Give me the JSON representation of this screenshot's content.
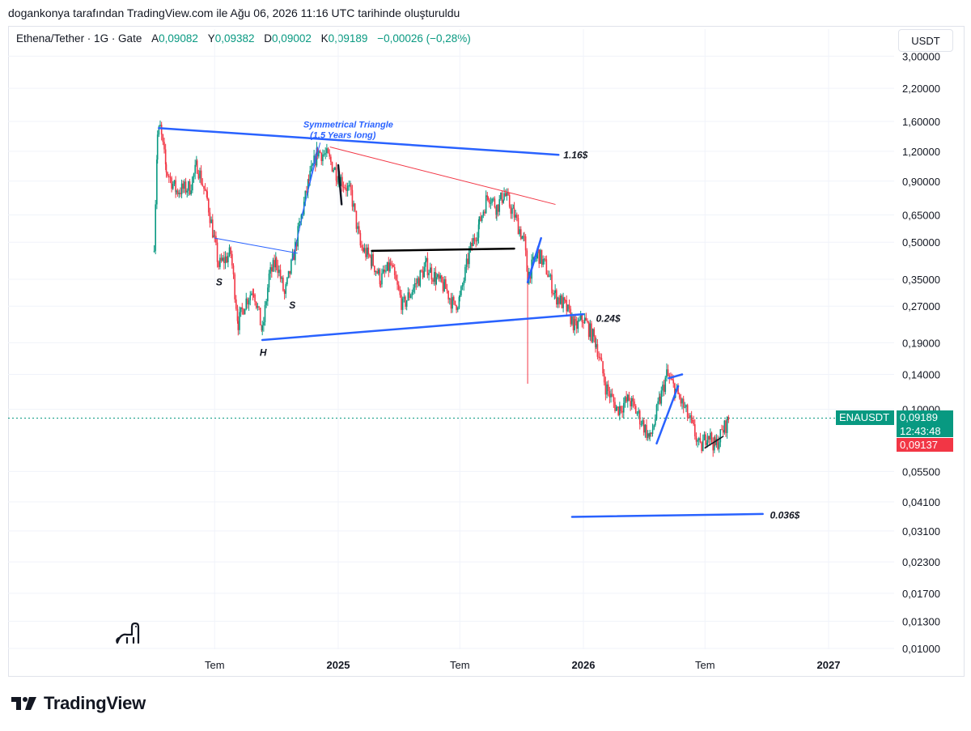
{
  "header": {
    "attribution": "dogankonya tarafından TradingView.com ile Ağu 06, 2026 11:16 UTC tarihinde oluşturuldu"
  },
  "legend": {
    "symbol": "Ethena/Tether · 1G · Gate",
    "open_label": "A",
    "open": "0,09082",
    "high_label": "Y",
    "high": "0,09382",
    "low_label": "D",
    "low": "0,09002",
    "close_label": "K",
    "close": "0,09189",
    "change": "−0,00026 (−0,28%)"
  },
  "currency_button": "USDT",
  "price_tags": {
    "symbol": "ENAUSDT",
    "last": "0,09189",
    "countdown": "12:43:48",
    "bid": "0,09137"
  },
  "annotations": {
    "triangle_title": "Symmetrical Triangle",
    "triangle_sub": "(1.5 Years long)",
    "target_upper": "1.16$",
    "target_mid": "0.24$",
    "target_low": "0.036$",
    "s1": "S",
    "head": "H",
    "s2": "S"
  },
  "brand": "TradingView",
  "colors": {
    "up": "#089981",
    "down": "#f23645",
    "trend": "#2962ff",
    "accent_line": "#f23645"
  },
  "chart_data": {
    "type": "candlestick",
    "title": "Ethena/Tether · 1G · Gate",
    "y_scale": "log",
    "y_ticks": [
      "3,00000",
      "2,20000",
      "1,60000",
      "1,20000",
      "0,90000",
      "0,65000",
      "0,50000",
      "0,35000",
      "0,27000",
      "0,19000",
      "0,14000",
      "0,10000",
      "0,05500",
      "0,04100",
      "0,03100",
      "0,02300",
      "0,01700",
      "0,01300",
      "0,01000"
    ],
    "y_tick_values": [
      3.0,
      2.2,
      1.6,
      1.2,
      0.9,
      0.65,
      0.5,
      0.35,
      0.27,
      0.19,
      0.14,
      0.1,
      0.055,
      0.041,
      0.031,
      0.023,
      0.017,
      0.013,
      0.01
    ],
    "x_ticks": [
      "Tem",
      "2025",
      "Tem",
      "2026",
      "Tem",
      "2027"
    ],
    "x_tick_dates": [
      "2024-07-01",
      "2025-01-01",
      "2025-07-01",
      "2026-01-01",
      "2026-07-01",
      "2027-01-01"
    ],
    "x_range": [
      "2024-01-01",
      "2027-05-01"
    ],
    "price_path": [
      [
        "2024-04-02",
        0.5
      ],
      [
        "2024-04-07",
        1.4
      ],
      [
        "2024-04-11",
        1.5
      ],
      [
        "2024-04-20",
        1.0
      ],
      [
        "2024-05-05",
        0.82
      ],
      [
        "2024-05-25",
        0.85
      ],
      [
        "2024-06-05",
        1.05
      ],
      [
        "2024-06-20",
        0.75
      ],
      [
        "2024-07-01",
        0.5
      ],
      [
        "2024-07-07",
        0.4
      ],
      [
        "2024-07-25",
        0.45
      ],
      [
        "2024-08-05",
        0.23
      ],
      [
        "2024-08-15",
        0.28
      ],
      [
        "2024-08-28",
        0.32
      ],
      [
        "2024-09-10",
        0.21
      ],
      [
        "2024-09-20",
        0.36
      ],
      [
        "2024-10-01",
        0.42
      ],
      [
        "2024-10-13",
        0.3
      ],
      [
        "2024-10-25",
        0.42
      ],
      [
        "2024-11-05",
        0.6
      ],
      [
        "2024-11-18",
        0.9
      ],
      [
        "2024-12-01",
        1.2
      ],
      [
        "2024-12-15",
        1.15
      ],
      [
        "2025-01-01",
        0.95
      ],
      [
        "2025-01-20",
        0.8
      ],
      [
        "2025-02-03",
        0.48
      ],
      [
        "2025-02-20",
        0.42
      ],
      [
        "2025-03-05",
        0.35
      ],
      [
        "2025-03-20",
        0.4
      ],
      [
        "2025-04-07",
        0.27
      ],
      [
        "2025-04-25",
        0.33
      ],
      [
        "2025-05-12",
        0.4
      ],
      [
        "2025-05-27",
        0.35
      ],
      [
        "2025-06-10",
        0.32
      ],
      [
        "2025-06-22",
        0.27
      ],
      [
        "2025-07-01",
        0.29
      ],
      [
        "2025-07-15",
        0.45
      ],
      [
        "2025-07-30",
        0.6
      ],
      [
        "2025-08-12",
        0.8
      ],
      [
        "2025-08-25",
        0.7
      ],
      [
        "2025-09-05",
        0.8
      ],
      [
        "2025-09-20",
        0.65
      ],
      [
        "2025-10-05",
        0.5
      ],
      [
        "2025-10-10",
        0.36
      ],
      [
        "2025-10-25",
        0.45
      ],
      [
        "2025-11-05",
        0.4
      ],
      [
        "2025-11-20",
        0.3
      ],
      [
        "2025-12-05",
        0.27
      ],
      [
        "2025-12-20",
        0.22
      ],
      [
        "2026-01-01",
        0.24
      ],
      [
        "2026-01-20",
        0.19
      ],
      [
        "2026-02-03",
        0.125
      ],
      [
        "2026-02-20",
        0.1
      ],
      [
        "2026-03-10",
        0.11
      ],
      [
        "2026-03-28",
        0.09
      ],
      [
        "2026-04-10",
        0.075
      ],
      [
        "2026-04-25",
        0.11
      ],
      [
        "2026-05-05",
        0.14
      ],
      [
        "2026-05-18",
        0.12
      ],
      [
        "2026-06-01",
        0.1
      ],
      [
        "2026-06-12",
        0.085
      ],
      [
        "2026-06-24",
        0.068
      ],
      [
        "2026-07-05",
        0.08
      ],
      [
        "2026-07-16",
        0.07
      ],
      [
        "2026-07-28",
        0.082
      ],
      [
        "2026-08-06",
        0.0919
      ]
    ],
    "last_price": 0.09189,
    "trend_lines": [
      {
        "from": [
          "2024-04-09",
          1.5
        ],
        "to": [
          "2025-11-25",
          1.16
        ],
        "label": "1.16$"
      },
      {
        "from": [
          "2024-09-10",
          0.195
        ],
        "to": [
          "2026-01-01",
          0.25
        ],
        "label": "0.24$"
      },
      {
        "from": [
          "2025-12-15",
          0.0355
        ],
        "to": [
          "2026-09-25",
          0.0365
        ],
        "label": "0.036$"
      },
      {
        "from": [
          "2024-12-20",
          1.25
        ],
        "to": [
          "2025-11-20",
          0.72
        ]
      },
      {
        "from": [
          "2025-02-20",
          0.46
        ],
        "to": [
          "2025-09-20",
          0.47
        ]
      }
    ]
  }
}
